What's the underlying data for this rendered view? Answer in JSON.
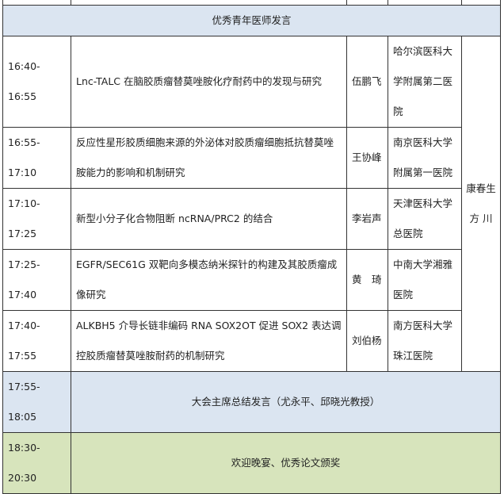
{
  "section_header": "优秀青年医师发言",
  "chair": [
    "康春生",
    "方 川"
  ],
  "talks": [
    {
      "time": "16:40-16:55",
      "title": "Lnc-TALC 在脑胶质瘤替莫唑胺化疗耐药中的发现与研究",
      "speaker": "伍鹏飞",
      "institution": [
        "哈尔滨医科大",
        "学附属第二医",
        "院"
      ]
    },
    {
      "time": "16:55-17:10",
      "title": [
        "反应性星形胶质细胞来源的外泌体对胶质瘤细胞抵抗替莫唑",
        "胺能力的影响和机制研究"
      ],
      "speaker": "王协峰",
      "institution": [
        "南京医科大学",
        "附属第一医院"
      ]
    },
    {
      "time": "17:10-17:25",
      "title": "新型小分子化合物阻断 ncRNA/PRC2 的结合",
      "speaker": "李岩声",
      "institution": [
        "天津医科大学",
        "总医院"
      ]
    },
    {
      "time": "17:25-17:40",
      "title": [
        "EGFR/SEC61G 双靶向多模态纳米探针的构建及其胶质瘤成",
        "像研究"
      ],
      "speaker": "黄　琦",
      "institution": [
        "中南大学湘雅",
        "医院"
      ]
    },
    {
      "time": "17:40-17:55",
      "title": [
        "ALKBH5 介导长链非编码 RNA SOX2OT 促进 SOX2 表达调",
        "控胶质瘤替莫唑胺耐药的机制研究"
      ],
      "speaker": "刘伯杨",
      "institution": [
        "南方医科大学",
        "珠江医院"
      ]
    }
  ],
  "closing": {
    "time": "17:55-18:05",
    "text": "大会主席总结发言（尤永平、邱晓光教授）"
  },
  "dinner": {
    "time": "18:30-20:30",
    "text": "欢迎晚宴、优秀论文颁奖"
  },
  "colors": {
    "header_bg": "#dbe5f1",
    "dinner_bg": "#d7e4bc"
  }
}
